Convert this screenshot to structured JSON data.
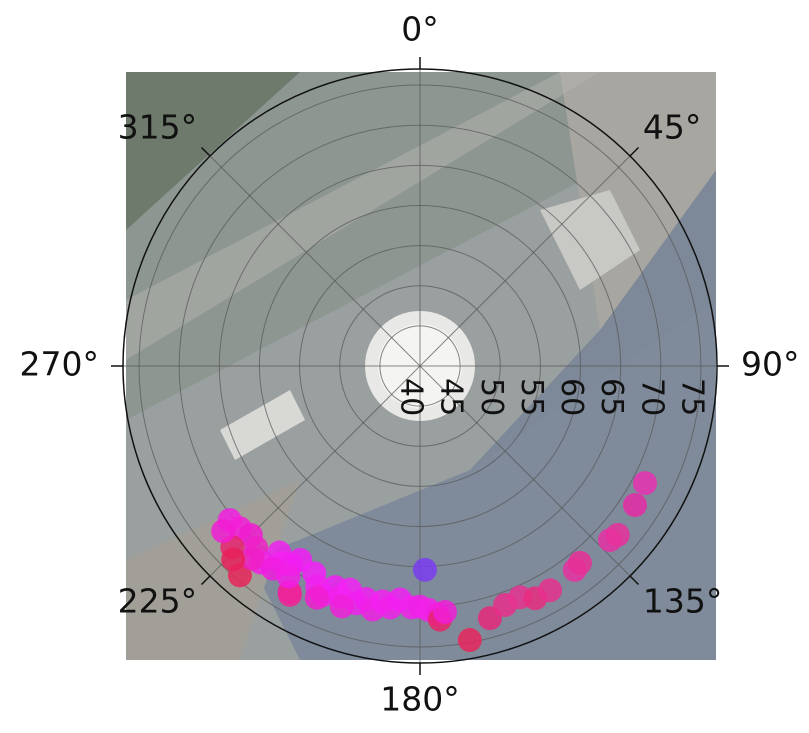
{
  "chart_data": {
    "type": "polar",
    "theta": [
      169.7,
      164.5,
      160.4,
      156.6,
      153.6,
      149.9,
      142.8,
      140.9,
      132.5,
      130.5,
      122.9,
      117.5,
      178.6,
      231,
      228,
      225,
      222,
      220.7,
      219,
      217,
      215,
      213,
      211.7,
      210,
      209.6,
      207,
      205,
      203,
      201,
      199,
      197.4,
      195,
      193,
      191,
      189,
      187,
      184.9,
      182,
      180,
      178,
      176,
      175.5,
      174.2,
      226,
      221,
      216,
      212,
      204,
      198,
      230,
      224
    ],
    "r": [
      74.7,
      72.6,
      71.6,
      71.4,
      72.3,
      72.3,
      71.9,
      71.6,
      72.1,
      72.4,
      71.9,
      71.6,
      65.4,
      70.5,
      70.2,
      69.8,
      70.5,
      74.4,
      71.5,
      69.1,
      70,
      69.5,
      68.4,
      72.5,
      72.8,
      69,
      70.3,
      71,
      69.5,
      70.4,
      69.2,
      70.6,
      69.8,
      70.9,
      69.7,
      70.3,
      69.2,
      70.1,
      70,
      70.4,
      71,
      71.7,
      70.8,
      72.5,
      71.8,
      71.2,
      70.9,
      71.6,
      71.5,
      72,
      73.5
    ],
    "colors": [
      "#e8245c",
      "#e6287a",
      "#e62f8a",
      "#e63190",
      "#e82d80",
      "#e8308e",
      "#e630a0",
      "#e82e96",
      "#e630a4",
      "#e8309c",
      "#e62aa6",
      "#e830b0",
      "#7a3cf0",
      "#f21ee0",
      "#f51ed8",
      "#f01cd0",
      "#ee20c8",
      "#e8245a",
      "#f520e8",
      "#f020f0",
      "#f822f2",
      "#f020ec",
      "#f21cf5",
      "#f01aa0",
      "#ee2498",
      "#f520f8",
      "#f222f0",
      "#f420ec",
      "#f01ef4",
      "#f220ea",
      "#f422f6",
      "#f020ee",
      "#f21ef2",
      "#f020e4",
      "#f420f2",
      "#f220ea",
      "#f21ef4",
      "#f222ec",
      "#f020e8",
      "#f222ea",
      "#f020e0",
      "#e8246c",
      "#f01ed8",
      "#e8246e",
      "#ee1ec4",
      "#f01ce0",
      "#f21ee6",
      "#f01ed0",
      "#f020dc",
      "#f21cd4",
      "#e8205a"
    ],
    "rlim": [
      40,
      77
    ],
    "rticks": [
      40,
      45,
      50,
      55,
      60,
      65,
      70,
      75
    ],
    "thetaticks": [
      {
        "value": 0,
        "label": "0°"
      },
      {
        "value": 45,
        "label": "45°"
      },
      {
        "value": 90,
        "label": "90°"
      },
      {
        "value": 135,
        "label": "135°"
      },
      {
        "value": 180,
        "label": "180°"
      },
      {
        "value": 225,
        "label": "225°"
      },
      {
        "value": 270,
        "label": "270°"
      },
      {
        "value": 315,
        "label": "315°"
      }
    ],
    "grid": true
  }
}
